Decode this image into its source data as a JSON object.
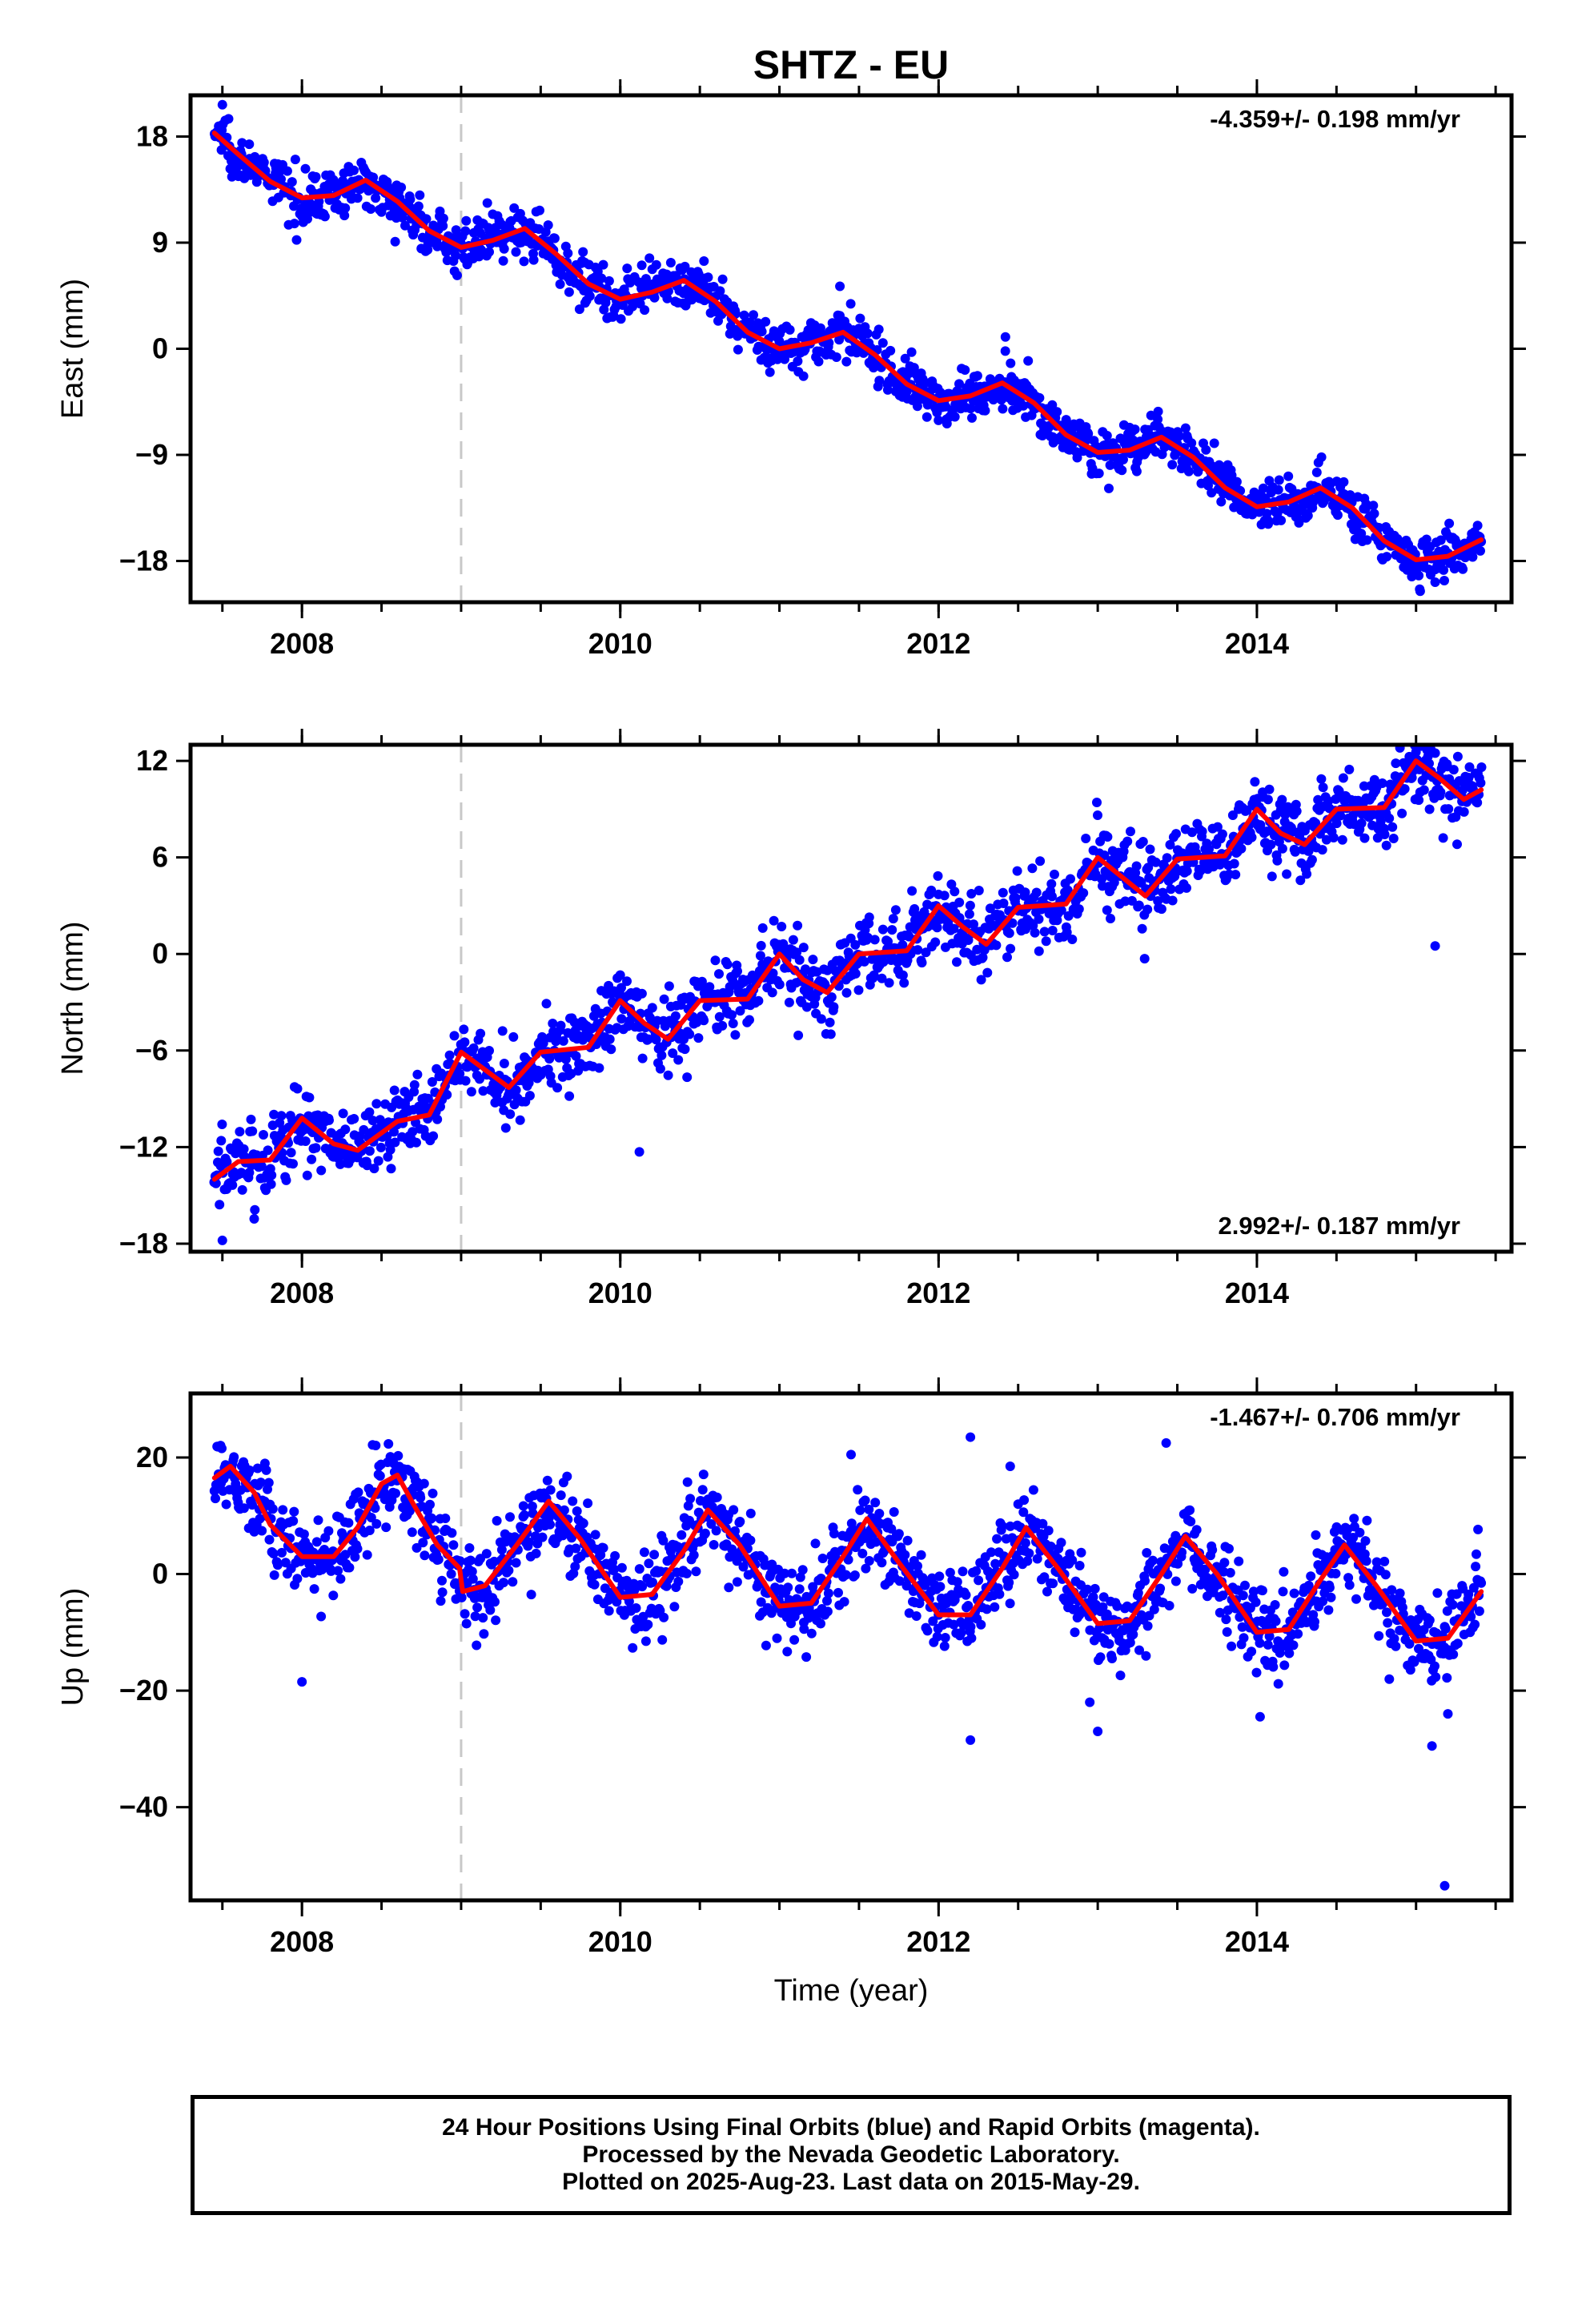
{
  "title": "SHTZ - EU",
  "xlabel": "Time (year)",
  "colors": {
    "final_orbits": "#0000ff",
    "model_fit": "#ff0000",
    "equipment_change_line": "#c8c8c8",
    "frame": "#000000"
  },
  "caption": {
    "line1": "24 Hour Positions Using Final Orbits (blue) and Rapid Orbits (magenta).",
    "line2": "Processed by the Nevada Geodetic Laboratory.",
    "line3": "Plotted on 2025-Aug-23. Last data on 2015-May-29."
  },
  "chart_data": [
    {
      "type": "scatter",
      "name": "east",
      "ylabel": "East (mm)",
      "rate_label": "-4.359+/- 0.198 mm/yr",
      "rate_label_position": "top-right",
      "xlim": [
        2007.3,
        2015.6
      ],
      "ylim": [
        -21.5,
        21.5
      ],
      "yticks": [
        18,
        9,
        0,
        -9,
        -18
      ],
      "xticks": [
        2008,
        2010,
        2012,
        2014
      ],
      "data_range_x": [
        2007.45,
        2015.41
      ],
      "vertical_line_x": 2009.0,
      "fit": {
        "x": [
          2007.45,
          2007.6,
          2007.8,
          2008.0,
          2008.2,
          2008.4,
          2008.6,
          2008.8,
          2009.0,
          2009.2,
          2009.4,
          2009.6,
          2009.8,
          2010.0,
          2010.2,
          2010.4,
          2010.6,
          2010.8,
          2011.0,
          2011.2,
          2011.4,
          2011.6,
          2011.8,
          2012.0,
          2012.2,
          2012.4,
          2012.6,
          2012.8,
          2013.0,
          2013.2,
          2013.4,
          2013.6,
          2013.8,
          2014.0,
          2014.2,
          2014.4,
          2014.6,
          2014.8,
          2015.0,
          2015.2,
          2015.41
        ],
        "y": [
          18.3,
          16.5,
          14.2,
          12.8,
          13.0,
          14.3,
          12.5,
          10.0,
          8.6,
          9.2,
          10.2,
          8.0,
          5.5,
          4.2,
          4.8,
          5.8,
          4.0,
          1.4,
          0.0,
          0.5,
          1.4,
          -0.5,
          -3.0,
          -4.4,
          -4.0,
          -2.9,
          -4.6,
          -7.3,
          -8.8,
          -8.6,
          -7.5,
          -9.2,
          -11.8,
          -13.4,
          -13.0,
          -11.8,
          -13.5,
          -16.3,
          -17.9,
          -17.6,
          -16.2
        ]
      },
      "scatter_model": {
        "a": 0.2,
        "c1": -1.0,
        "c2": -3.0,
        "noise": 1.0
      },
      "outliers": [
        {
          "x": 2007.5,
          "y": 20.7
        },
        {
          "x": 2011.38,
          "y": 5.3
        },
        {
          "x": 2012.42,
          "y": 1.0
        },
        {
          "x": 2015.12,
          "y": -19.8
        }
      ]
    },
    {
      "type": "scatter",
      "name": "north",
      "ylabel": "North (mm)",
      "rate_label": "2.992+/- 0.187 mm/yr",
      "rate_label_position": "bottom-right",
      "xlim": [
        2007.3,
        2015.6
      ],
      "ylim": [
        -18.5,
        13.0
      ],
      "yticks": [
        12,
        6,
        0,
        -6,
        -12,
        -18
      ],
      "xticks": [
        2008,
        2010,
        2012,
        2014
      ],
      "data_range_x": [
        2007.45,
        2015.41
      ],
      "vertical_line_x": 2009.0,
      "fit": {
        "x": [
          2007.45,
          2007.6,
          2007.8,
          2008.0,
          2008.2,
          2008.35,
          2008.6,
          2008.8,
          2009.0,
          2009.15,
          2009.3,
          2009.5,
          2009.8,
          2010.0,
          2010.15,
          2010.3,
          2010.5,
          2010.8,
          2011.0,
          2011.15,
          2011.3,
          2011.5,
          2011.8,
          2012.0,
          2012.15,
          2012.3,
          2012.5,
          2012.8,
          2013.0,
          2013.15,
          2013.3,
          2013.5,
          2013.8,
          2014.0,
          2014.15,
          2014.3,
          2014.5,
          2014.8,
          2015.0,
          2015.15,
          2015.3,
          2015.41
        ],
        "y": [
          -14.0,
          -12.9,
          -12.8,
          -10.2,
          -11.8,
          -12.2,
          -10.4,
          -10.0,
          -6.1,
          -7.2,
          -8.3,
          -6.1,
          -5.8,
          -2.9,
          -4.3,
          -5.3,
          -2.9,
          -2.8,
          0.0,
          -1.6,
          -2.4,
          0.0,
          0.2,
          3.0,
          1.7,
          0.6,
          2.9,
          3.1,
          6.0,
          4.8,
          3.6,
          5.9,
          6.1,
          9.0,
          7.5,
          6.8,
          9.0,
          9.1,
          12.0,
          10.9,
          9.6,
          10.2
        ]
      },
      "scatter_model": {
        "a": 0.0,
        "c1": 0.0,
        "c2": 0.0,
        "noise": 1.2
      },
      "outliers": [
        {
          "x": 2010.12,
          "y": -12.3
        },
        {
          "x": 2015.12,
          "y": 0.5
        },
        {
          "x": 2007.5,
          "y": -17.8
        },
        {
          "x": 2013.08,
          "y": 2.2
        }
      ]
    },
    {
      "type": "scatter",
      "name": "up",
      "ylabel": "Up (mm)",
      "rate_label": "-1.467+/- 0.706 mm/yr",
      "rate_label_position": "top-right",
      "xlim": [
        2007.3,
        2015.6
      ],
      "ylim": [
        -56.0,
        31.0
      ],
      "yticks": [
        20,
        0,
        -20,
        -40
      ],
      "xticks": [
        2008,
        2010,
        2012,
        2014
      ],
      "data_range_x": [
        2007.45,
        2015.41
      ],
      "vertical_line_x": 2009.0,
      "fit": {
        "x": [
          2007.45,
          2007.55,
          2007.7,
          2007.8,
          2008.0,
          2008.2,
          2008.35,
          2008.5,
          2008.6,
          2008.7,
          2008.85,
          2008.99,
          2009.01,
          2009.15,
          2009.35,
          2009.55,
          2009.75,
          2010.0,
          2010.2,
          2010.4,
          2010.55,
          2010.75,
          2011.0,
          2011.2,
          2011.4,
          2011.55,
          2011.75,
          2012.0,
          2012.2,
          2012.4,
          2012.55,
          2012.75,
          2013.0,
          2013.2,
          2013.4,
          2013.55,
          2013.75,
          2014.0,
          2014.2,
          2014.4,
          2014.55,
          2014.75,
          2015.0,
          2015.2,
          2015.41
        ],
        "y": [
          16.5,
          18.5,
          14.0,
          8.5,
          3.0,
          3.0,
          8.0,
          15.5,
          17.0,
          12.0,
          5.0,
          1.0,
          -3.0,
          -2.0,
          5.0,
          12.5,
          6.0,
          -4.0,
          -3.5,
          4.0,
          11.0,
          5.0,
          -5.5,
          -5.0,
          3.0,
          9.5,
          2.0,
          -7.0,
          -7.0,
          1.0,
          8.0,
          1.0,
          -8.5,
          -8.0,
          0.0,
          6.5,
          0.0,
          -10.0,
          -9.5,
          -1.0,
          5.0,
          -2.0,
          -11.5,
          -11.0,
          -3.0
        ]
      },
      "scatter_model": {
        "a": 0.0,
        "c1": 0.0,
        "c2": 0.0,
        "noise": 3.6
      },
      "outliers": [
        {
          "x": 2008.0,
          "y": -18.5
        },
        {
          "x": 2012.2,
          "y": 23.5
        },
        {
          "x": 2012.2,
          "y": -28.5
        },
        {
          "x": 2012.45,
          "y": 18.5
        },
        {
          "x": 2013.0,
          "y": -27.0
        },
        {
          "x": 2013.43,
          "y": 22.5
        },
        {
          "x": 2014.02,
          "y": -24.5
        },
        {
          "x": 2015.1,
          "y": -29.5
        },
        {
          "x": 2015.18,
          "y": -53.5
        },
        {
          "x": 2012.95,
          "y": -22.0
        },
        {
          "x": 2015.2,
          "y": -24.0
        },
        {
          "x": 2011.45,
          "y": 20.5
        }
      ]
    }
  ]
}
